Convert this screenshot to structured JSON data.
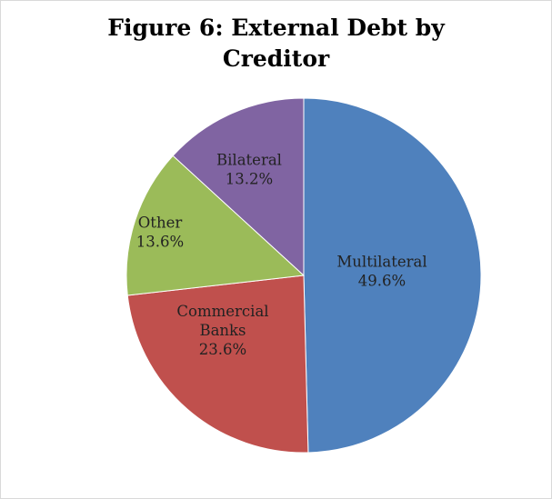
{
  "chart_data": {
    "type": "pie",
    "title_lines": [
      "Figure 6: External Debt by",
      "Creditor"
    ],
    "slices": [
      {
        "label_lines": [
          "Multilateral"
        ],
        "value": 49.6,
        "value_label": "49.6%",
        "color": "#4f81bd"
      },
      {
        "label_lines": [
          "Commercial",
          "Banks"
        ],
        "value": 23.6,
        "value_label": "23.6%",
        "color": "#c0504d"
      },
      {
        "label_lines": [
          "Other"
        ],
        "value": 13.6,
        "value_label": "13.6%",
        "color": "#9bbb59"
      },
      {
        "label_lines": [
          "Bilateral"
        ],
        "value": 13.2,
        "value_label": "13.2%",
        "color": "#8064a2"
      }
    ],
    "start": "12 o'clock",
    "direction": "clockwise",
    "legend": "none",
    "labels": "inside slices"
  }
}
